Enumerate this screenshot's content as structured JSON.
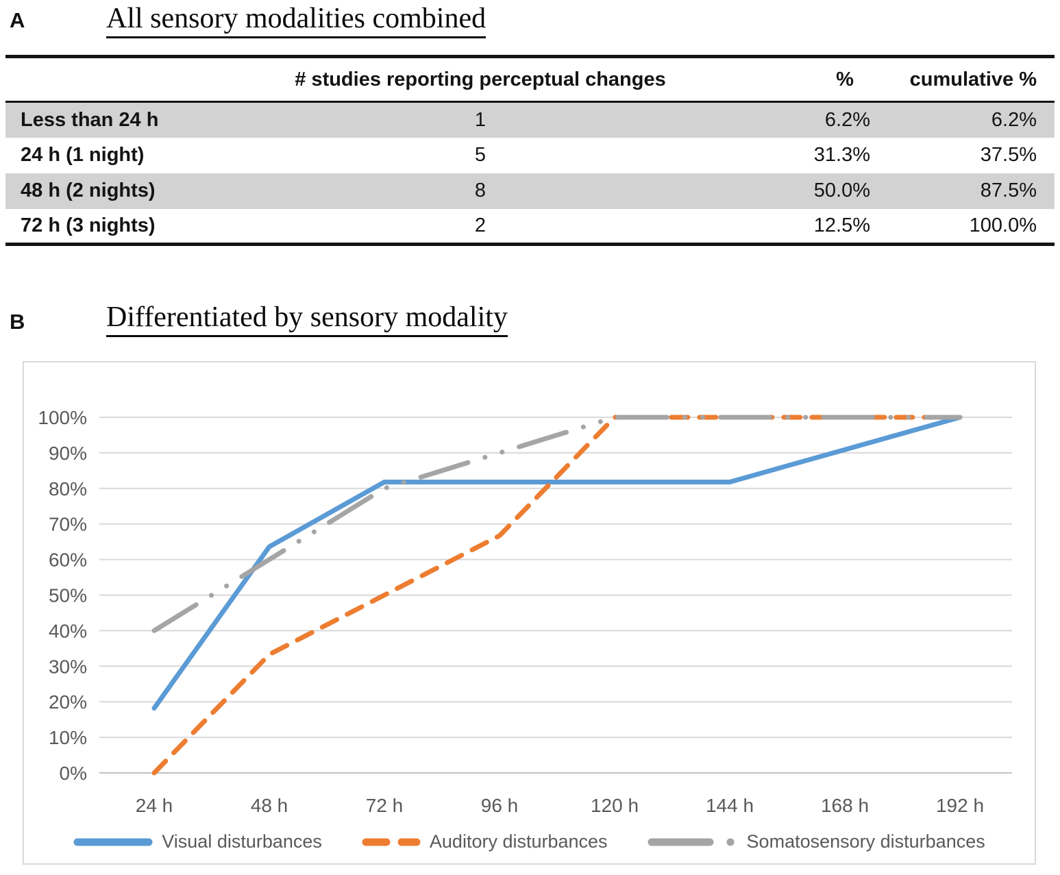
{
  "panel_a": {
    "label": "A",
    "title": "All sensory modalities combined",
    "table": {
      "columns": [
        "",
        "# studies reporting perceptual changes",
        "%",
        "cumulative %"
      ],
      "rows": [
        {
          "label": "Less than 24 h",
          "studies": "1",
          "pct": "6.2%",
          "cum": "6.2%"
        },
        {
          "label": "24 h (1 night)",
          "studies": "5",
          "pct": "31.3%",
          "cum": "37.5%"
        },
        {
          "label": "48 h (2 nights)",
          "studies": "8",
          "pct": "50.0%",
          "cum": "87.5%"
        },
        {
          "label": "72 h (3 nights)",
          "studies": "2",
          "pct": "12.5%",
          "cum": "100.0%"
        }
      ]
    }
  },
  "panel_b": {
    "label": "B",
    "title": "Differentiated by sensory modality"
  },
  "chart_data": {
    "type": "line",
    "x": [
      "24 h",
      "48 h",
      "72 h",
      "96 h",
      "120 h",
      "144 h",
      "168 h",
      "192 h"
    ],
    "x_hours": [
      24,
      48,
      72,
      96,
      120,
      144,
      168,
      192
    ],
    "series": [
      {
        "name": "Visual disturbances",
        "color": "#5B9BD5",
        "style": "solid",
        "values": [
          18.2,
          63.6,
          81.8,
          81.8,
          81.8,
          81.8,
          90.9,
          100
        ]
      },
      {
        "name": "Auditory disturbances",
        "color": "#ED7D31",
        "style": "dashed",
        "values": [
          0,
          33.3,
          50,
          66.7,
          100,
          100,
          100,
          100
        ]
      },
      {
        "name": "Somatosensory disturbances",
        "color": "#A5A5A5",
        "style": "dash-dot",
        "values": [
          40,
          60,
          80,
          90,
          100,
          100,
          100,
          100
        ]
      }
    ],
    "yticks": [
      "0%",
      "10%",
      "20%",
      "30%",
      "40%",
      "50%",
      "60%",
      "70%",
      "80%",
      "90%",
      "100%"
    ],
    "ylim": [
      0,
      100
    ],
    "xlabel": "",
    "ylabel": "",
    "grid": true,
    "legend_position": "bottom",
    "colors": {
      "gridline": "#d9d9d9",
      "axis_line": "#c2c2c2",
      "tick_text": "#595959"
    }
  }
}
